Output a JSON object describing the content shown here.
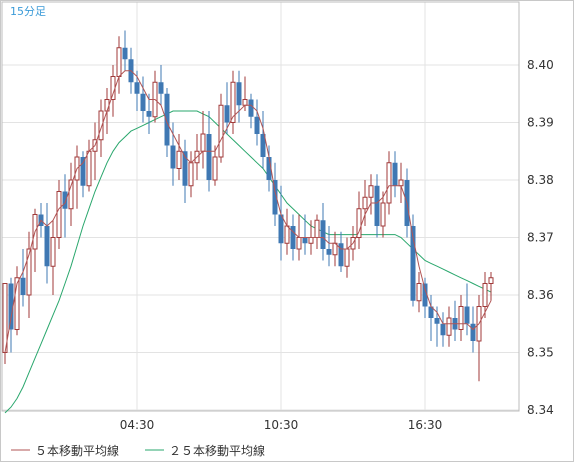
{
  "chart_data": {
    "type": "candlestick",
    "interval_label": "15分足",
    "y_ticks": [
      "8.34",
      "8.35",
      "8.36",
      "8.37",
      "8.38",
      "8.39",
      "8.40"
    ],
    "ylim": [
      8.334,
      8.407
    ],
    "x_ticks": [
      "04:30",
      "10:30",
      "16:30"
    ],
    "grid": true,
    "legend_position": "bottom-left",
    "up_color": "#a03a3a",
    "down_color": "#3f78b3",
    "legend": [
      {
        "label": "５本移動平均線",
        "color": "#b25555"
      },
      {
        "label": "２５本移動平均線",
        "color": "#2aa76d"
      }
    ],
    "candles": [
      [
        8.35,
        8.362,
        8.348,
        8.362
      ],
      [
        8.362,
        8.363,
        8.35,
        8.354
      ],
      [
        8.354,
        8.365,
        8.353,
        8.363
      ],
      [
        8.363,
        8.368,
        8.358,
        8.36
      ],
      [
        8.36,
        8.371,
        8.356,
        8.368
      ],
      [
        8.368,
        8.375,
        8.364,
        8.374
      ],
      [
        8.374,
        8.376,
        8.37,
        8.372
      ],
      [
        8.372,
        8.376,
        8.362,
        8.365
      ],
      [
        8.365,
        8.373,
        8.36,
        8.37
      ],
      [
        8.37,
        8.38,
        8.368,
        8.378
      ],
      [
        8.378,
        8.381,
        8.37,
        8.375
      ],
      [
        8.375,
        8.383,
        8.372,
        8.38
      ],
      [
        8.38,
        8.386,
        8.375,
        8.384
      ],
      [
        8.384,
        8.385,
        8.377,
        8.379
      ],
      [
        8.379,
        8.387,
        8.378,
        8.385
      ],
      [
        8.385,
        8.39,
        8.38,
        8.387
      ],
      [
        8.387,
        8.394,
        8.384,
        8.392
      ],
      [
        8.392,
        8.396,
        8.388,
        8.394
      ],
      [
        8.394,
        8.4,
        8.391,
        8.398
      ],
      [
        8.398,
        8.405,
        8.395,
        8.403
      ],
      [
        8.403,
        8.406,
        8.399,
        8.401
      ],
      [
        8.401,
        8.403,
        8.395,
        8.397
      ],
      [
        8.397,
        8.399,
        8.392,
        8.395
      ],
      [
        8.395,
        8.398,
        8.39,
        8.392
      ],
      [
        8.392,
        8.395,
        8.388,
        8.391
      ],
      [
        8.391,
        8.399,
        8.39,
        8.397
      ],
      [
        8.397,
        8.4,
        8.393,
        8.395
      ],
      [
        8.395,
        8.396,
        8.384,
        8.386
      ],
      [
        8.386,
        8.39,
        8.379,
        8.382
      ],
      [
        8.382,
        8.388,
        8.38,
        8.385
      ],
      [
        8.385,
        8.387,
        8.376,
        8.379
      ],
      [
        8.379,
        8.385,
        8.377,
        8.383
      ],
      [
        8.383,
        8.388,
        8.38,
        8.385
      ],
      [
        8.385,
        8.392,
        8.382,
        8.388
      ],
      [
        8.388,
        8.392,
        8.378,
        8.38
      ],
      [
        8.38,
        8.386,
        8.379,
        8.384
      ],
      [
        8.384,
        8.395,
        8.383,
        8.393
      ],
      [
        8.393,
        8.397,
        8.388,
        8.39
      ],
      [
        8.39,
        8.399,
        8.388,
        8.397
      ],
      [
        8.397,
        8.399,
        8.39,
        8.393
      ],
      [
        8.393,
        8.398,
        8.392,
        8.394
      ],
      [
        8.394,
        8.395,
        8.389,
        8.391
      ],
      [
        8.391,
        8.394,
        8.386,
        8.388
      ],
      [
        8.388,
        8.392,
        8.382,
        8.384
      ],
      [
        8.384,
        8.386,
        8.378,
        8.38
      ],
      [
        8.38,
        8.383,
        8.372,
        8.374
      ],
      [
        8.374,
        8.379,
        8.366,
        8.369
      ],
      [
        8.369,
        8.375,
        8.367,
        8.372
      ],
      [
        8.372,
        8.374,
        8.366,
        8.368
      ],
      [
        8.368,
        8.374,
        8.366,
        8.37
      ],
      [
        8.37,
        8.374,
        8.367,
        8.369
      ],
      [
        8.369,
        8.373,
        8.367,
        8.37
      ],
      [
        8.37,
        8.374,
        8.368,
        8.373
      ],
      [
        8.373,
        8.376,
        8.366,
        8.368
      ],
      [
        8.368,
        8.372,
        8.365,
        8.367
      ],
      [
        8.367,
        8.371,
        8.365,
        8.369
      ],
      [
        8.369,
        8.371,
        8.364,
        8.365
      ],
      [
        8.365,
        8.37,
        8.363,
        8.368
      ],
      [
        8.368,
        8.372,
        8.366,
        8.37
      ],
      [
        8.37,
        8.378,
        8.368,
        8.375
      ],
      [
        8.375,
        8.38,
        8.372,
        8.377
      ],
      [
        8.377,
        8.381,
        8.374,
        8.379
      ],
      [
        8.379,
        8.381,
        8.37,
        8.372
      ],
      [
        8.372,
        8.378,
        8.37,
        8.376
      ],
      [
        8.376,
        8.385,
        8.374,
        8.383
      ],
      [
        8.383,
        8.385,
        8.377,
        8.379
      ],
      [
        8.379,
        8.383,
        8.376,
        8.38
      ],
      [
        8.38,
        8.382,
        8.37,
        8.372
      ],
      [
        8.372,
        8.374,
        8.358,
        8.359
      ],
      [
        8.359,
        8.364,
        8.357,
        8.362
      ],
      [
        8.362,
        8.363,
        8.356,
        8.358
      ],
      [
        8.358,
        8.36,
        8.352,
        8.356
      ],
      [
        8.356,
        8.358,
        8.351,
        8.355
      ],
      [
        8.355,
        8.357,
        8.351,
        8.353
      ],
      [
        8.353,
        8.358,
        8.351,
        8.356
      ],
      [
        8.356,
        8.359,
        8.352,
        8.354
      ],
      [
        8.354,
        8.36,
        8.352,
        8.358
      ],
      [
        8.358,
        8.362,
        8.353,
        8.355
      ],
      [
        8.355,
        8.358,
        8.35,
        8.352
      ],
      [
        8.352,
        8.36,
        8.345,
        8.358
      ],
      [
        8.358,
        8.364,
        8.356,
        8.362
      ],
      [
        8.362,
        8.364,
        8.359,
        8.363
      ]
    ],
    "ma5": [
      8.35,
      8.356,
      8.362,
      8.364,
      8.367,
      8.371,
      8.373,
      8.372,
      8.373,
      8.375,
      8.376,
      8.379,
      8.382,
      8.383,
      8.385,
      8.386,
      8.389,
      8.392,
      8.395,
      8.398,
      8.399,
      8.399,
      8.398,
      8.396,
      8.394,
      8.394,
      8.393,
      8.39,
      8.388,
      8.386,
      8.384,
      8.383,
      8.384,
      8.385,
      8.385,
      8.385,
      8.387,
      8.389,
      8.391,
      8.392,
      8.393,
      8.393,
      8.392,
      8.389,
      8.384,
      8.378,
      8.374,
      8.372,
      8.371,
      8.37,
      8.37,
      8.37,
      8.37,
      8.37,
      8.369,
      8.369,
      8.368,
      8.368,
      8.369,
      8.371,
      8.374,
      8.376,
      8.376,
      8.377,
      8.379,
      8.379,
      8.379,
      8.376,
      8.37,
      8.365,
      8.361,
      8.358,
      8.357,
      8.355,
      8.355,
      8.355,
      8.355,
      8.355,
      8.354,
      8.355,
      8.357,
      8.359
    ],
    "ma25": [
      8.3395,
      8.3405,
      8.342,
      8.344,
      8.3465,
      8.349,
      8.3515,
      8.354,
      8.3565,
      8.359,
      8.362,
      8.365,
      8.3685,
      8.372,
      8.375,
      8.378,
      8.3805,
      8.383,
      8.385,
      8.3865,
      8.3875,
      8.3885,
      8.389,
      8.3895,
      8.39,
      8.3905,
      8.391,
      8.3915,
      8.392,
      8.392,
      8.392,
      8.392,
      8.392,
      8.3915,
      8.391,
      8.39,
      8.389,
      8.388,
      8.387,
      8.386,
      8.385,
      8.384,
      8.383,
      8.382,
      8.3805,
      8.379,
      8.3775,
      8.376,
      8.375,
      8.374,
      8.373,
      8.372,
      8.3715,
      8.371,
      8.3705,
      8.3705,
      8.3705,
      8.3705,
      8.3705,
      8.3705,
      8.3705,
      8.3705,
      8.3705,
      8.3705,
      8.3705,
      8.3705,
      8.37,
      8.369,
      8.368,
      8.367,
      8.366,
      8.3655,
      8.365,
      8.3645,
      8.364,
      8.3635,
      8.363,
      8.3625,
      8.362,
      8.3615,
      8.361,
      8.3605
    ]
  }
}
